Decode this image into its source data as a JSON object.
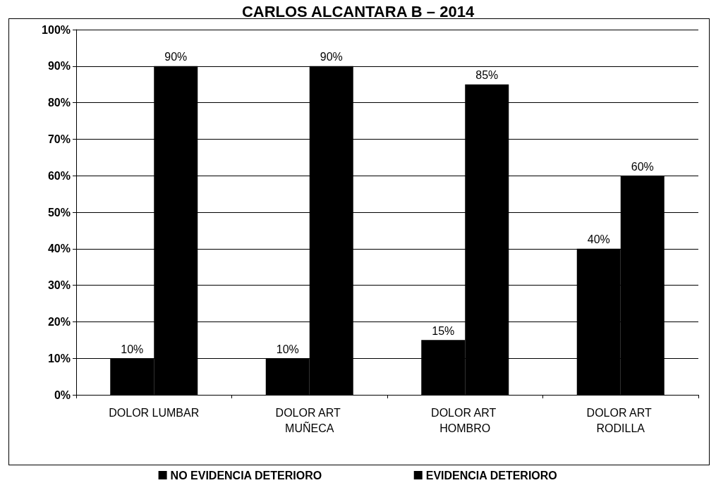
{
  "chart_data": {
    "type": "bar",
    "title": "CARLOS ALCANTARA B – 2014",
    "categories": [
      "DOLOR LUMBAR",
      "DOLOR ART MUÑECA",
      "DOLOR ART HOMBRO",
      "DOLOR ART RODILLA"
    ],
    "series": [
      {
        "name": "NO EVIDENCIA DETERIORO",
        "color": "#000000",
        "values": [
          10,
          10,
          15,
          40
        ],
        "value_labels": [
          "10%",
          "10%",
          "15%",
          "40%"
        ]
      },
      {
        "name": "EVIDENCIA DETERIORO",
        "color": "#000000",
        "values": [
          90,
          90,
          85,
          60
        ],
        "value_labels": [
          "90%",
          "90%",
          "85%",
          "60%"
        ]
      }
    ],
    "ylim": [
      0,
      100
    ],
    "yticks": [
      {
        "value": 0,
        "label": "0%"
      },
      {
        "value": 10,
        "label": "10%"
      },
      {
        "value": 20,
        "label": "20%"
      },
      {
        "value": 30,
        "label": "30%"
      },
      {
        "value": 40,
        "label": "40%"
      },
      {
        "value": 50,
        "label": "50%"
      },
      {
        "value": 60,
        "label": "60%"
      },
      {
        "value": 70,
        "label": "70%"
      },
      {
        "value": 80,
        "label": "80%"
      },
      {
        "value": 90,
        "label": "90%"
      },
      {
        "value": 100,
        "label": "100%"
      }
    ],
    "grid": "y",
    "legend": "bottom"
  }
}
